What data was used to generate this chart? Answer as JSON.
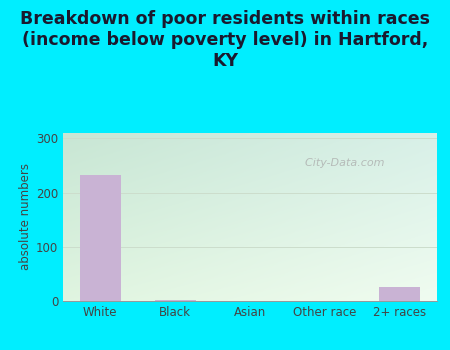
{
  "categories": [
    "White",
    "Black",
    "Asian",
    "Other race",
    "2+ races"
  ],
  "values": [
    232,
    2,
    0,
    0,
    25
  ],
  "bar_color": "#c9b3d4",
  "title": "Breakdown of poor residents within races\n(income below poverty level) in Hartford,\nKY",
  "ylabel": "absolute numbers",
  "ylim": [
    0,
    310
  ],
  "yticks": [
    0,
    100,
    200,
    300
  ],
  "background_outer": "#00eeff",
  "bg_top_left": "#c8e6d4",
  "bg_bottom_right": "#eaf5ea",
  "grid_color": "#ccddcc",
  "title_fontsize": 12.5,
  "axis_label_fontsize": 8.5,
  "tick_fontsize": 8.5,
  "watermark": "  City-Data.com",
  "title_color": "#1a1a2e",
  "tick_color": "#444444"
}
